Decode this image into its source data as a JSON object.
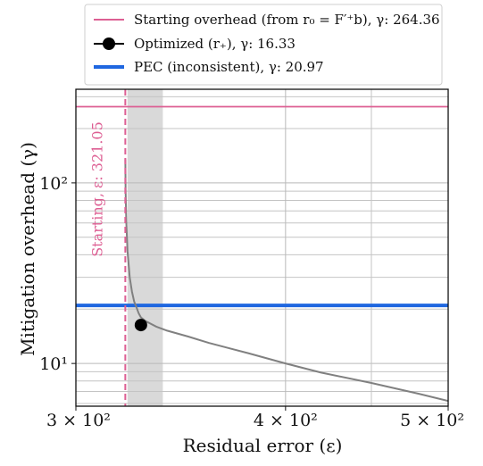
{
  "chart_data": {
    "type": "line",
    "xscale": "log",
    "yscale": "log",
    "xlim": [
      300,
      500
    ],
    "ylim": [
      5.8,
      330
    ],
    "xlabel": "Residual error (ε)",
    "ylabel": "Mitigation overhead (γ)",
    "x_ticks": [
      {
        "value": 300,
        "label": "3 × 10²"
      },
      {
        "value": 400,
        "label": "4 × 10²"
      },
      {
        "value": 500,
        "label": "5 × 10²"
      }
    ],
    "y_ticks": [
      {
        "value": 10,
        "label": "10¹"
      },
      {
        "value": 100,
        "label": "10²"
      }
    ],
    "grid": true,
    "legend_position": "top-center",
    "colors": {
      "starting": "#dd5f93",
      "optimized": "#000000",
      "pec": "#1f67e0",
      "curve": "#808080",
      "band": "#d9d9d9"
    },
    "legend": [
      {
        "key": "starting",
        "label": "Starting overhead (from r₀ = F′⁺b), γ: 264.36"
      },
      {
        "key": "optimized",
        "label": "Optimized (r₊), γ: 16.33"
      },
      {
        "key": "pec",
        "label": "PEC (inconsistent), γ: 20.97"
      }
    ],
    "series": [
      {
        "name": "tradeoff curve",
        "x": [
          321.05,
          321.2,
          321.5,
          322,
          323,
          324,
          325,
          326,
          327,
          328,
          330,
          335,
          340,
          350,
          360,
          380,
          400,
          420,
          450,
          480,
          500
        ],
        "y": [
          135,
          90,
          60,
          42,
          30,
          25,
          22,
          20.5,
          19,
          18,
          17.2,
          16,
          15.2,
          14.1,
          13,
          11.4,
          10,
          8.9,
          7.8,
          6.8,
          6.2
        ]
      }
    ],
    "hlines": [
      {
        "key": "starting",
        "y": 264.36
      },
      {
        "key": "pec",
        "y": 20.97
      }
    ],
    "vline": {
      "key": "starting",
      "x": 321.05,
      "label": "Starting, ε: 321.05"
    },
    "points": [
      {
        "key": "optimized",
        "x": 328,
        "y": 16.33
      }
    ],
    "shaded_band": {
      "x0": 322,
      "x1": 338
    }
  }
}
